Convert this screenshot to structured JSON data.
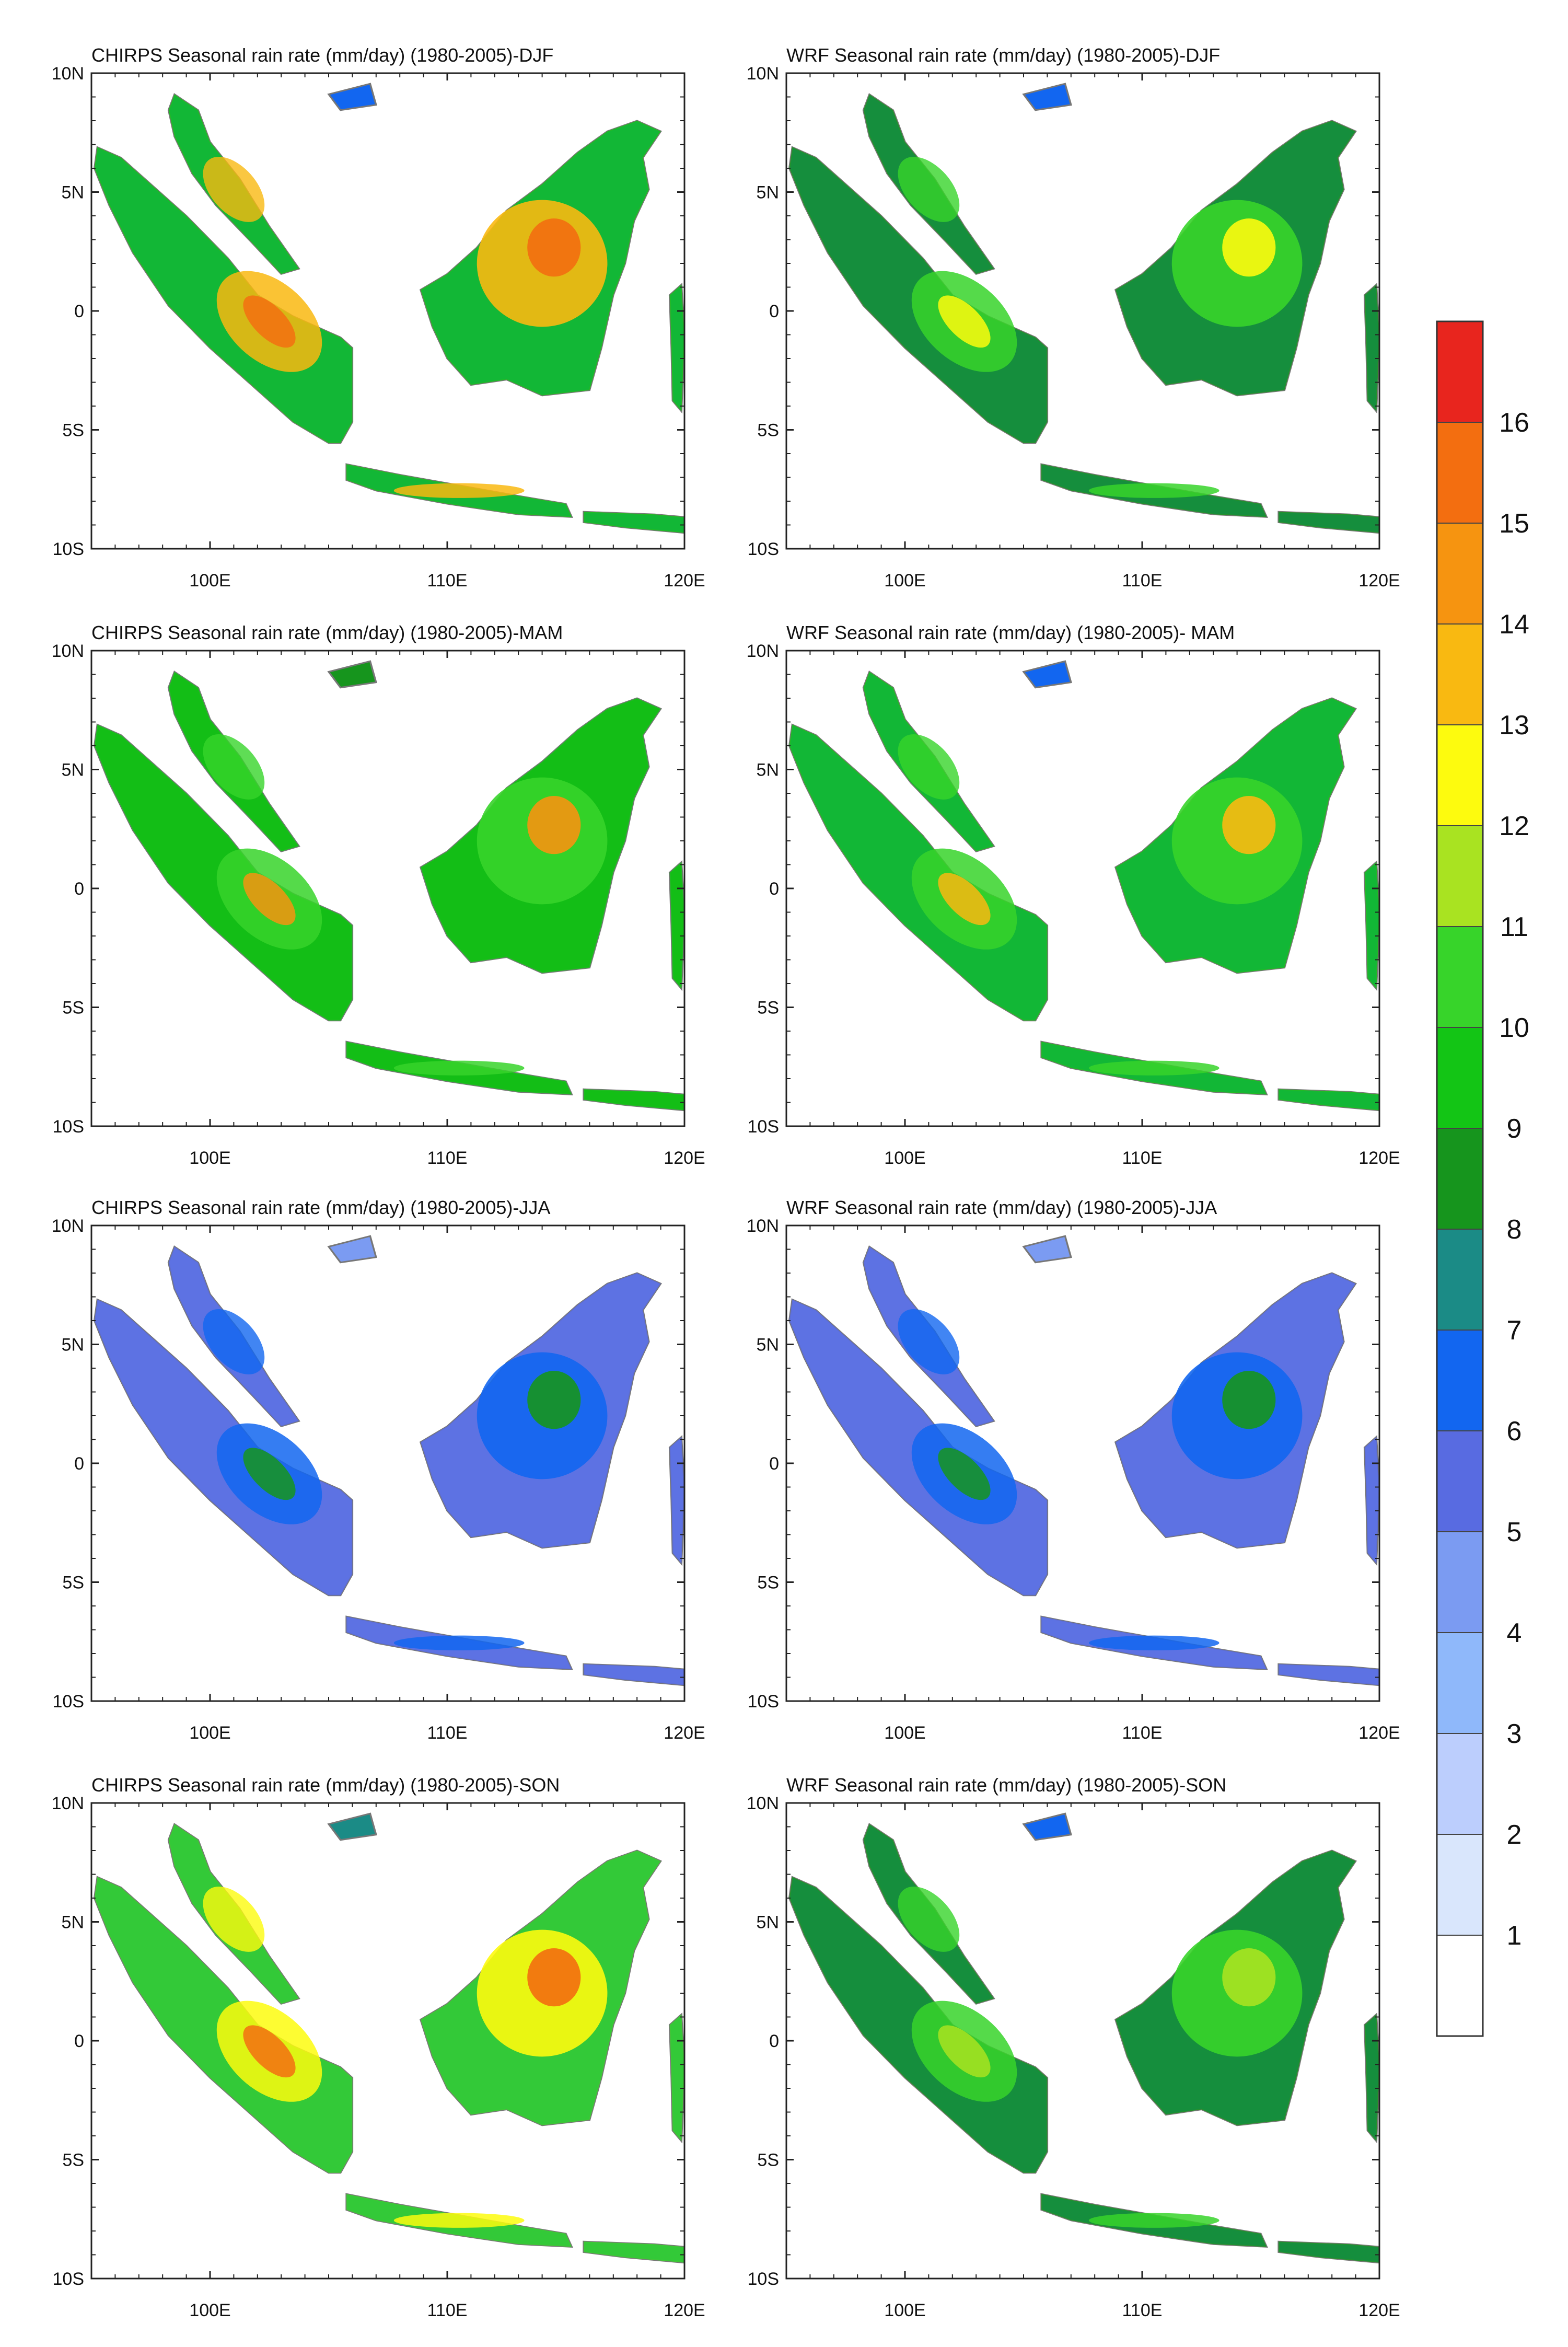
{
  "panels": [
    {
      "title": "CHIRPS Seasonal rain rate (mm/day) (1980-2005)-DJF",
      "source": "CHIRPS",
      "season": "DJF"
    },
    {
      "title": "WRF Seasonal rain rate (mm/day) (1980-2005)-DJF",
      "source": "WRF",
      "season": "DJF"
    },
    {
      "title": "CHIRPS Seasonal rain rate (mm/day) (1980-2005)-MAM",
      "source": "CHIRPS",
      "season": "MAM"
    },
    {
      "title": "WRF Seasonal rain rate (mm/day) (1980-2005)- MAM",
      "source": "WRF",
      "season": "MAM"
    },
    {
      "title": "CHIRPS Seasonal rain rate (mm/day) (1980-2005)-JJA",
      "source": "CHIRPS",
      "season": "JJA"
    },
    {
      "title": "WRF Seasonal rain rate (mm/day) (1980-2005)-JJA",
      "source": "WRF",
      "season": "JJA"
    },
    {
      "title": "CHIRPS Seasonal rain rate (mm/day) (1980-2005)-SON",
      "source": "CHIRPS",
      "season": "SON"
    },
    {
      "title": "WRF Seasonal rain rate (mm/day) (1980-2005)-SON",
      "source": "WRF",
      "season": "SON"
    }
  ],
  "axes": {
    "y_ticks": [
      "10N",
      "5N",
      "0",
      "5S",
      "10S"
    ],
    "x_ticks": [
      "100E",
      "110E",
      "120E"
    ]
  },
  "colorbar": {
    "labels": [
      "16",
      "15",
      "14",
      "13",
      "12",
      "11",
      "10",
      "9",
      "8",
      "7",
      "6",
      "5",
      "4",
      "3",
      "2",
      "1"
    ],
    "colors": [
      "#e8251e",
      "#f36e10",
      "#f69410",
      "#f9b911",
      "#fdfb0e",
      "#a9e321",
      "#37d42a",
      "#13c515",
      "#16951d",
      "#1b8b86",
      "#1266f0",
      "#586be1",
      "#7b9bf2",
      "#8fb8fa",
      "#bccefd",
      "#d9e6fc",
      "#ffffff"
    ]
  }
}
